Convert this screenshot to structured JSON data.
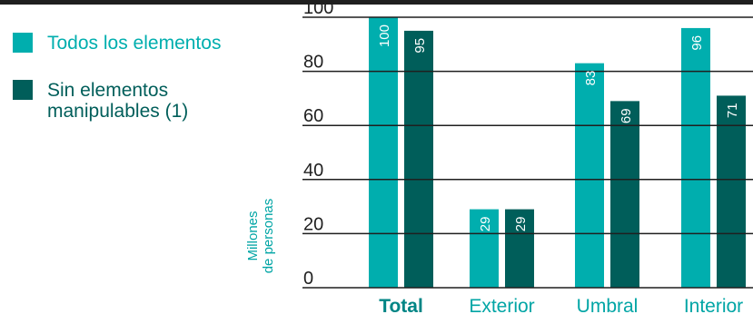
{
  "chart_data": {
    "type": "bar",
    "categories": [
      "Total",
      "Exterior",
      "Umbral",
      "Interior"
    ],
    "series": [
      {
        "name": "Todos los elementos",
        "values": [
          100,
          29,
          83,
          96
        ],
        "color": "#00aeae"
      },
      {
        "name": "Sin elementos\nmanipulables (1)",
        "values": [
          95,
          29,
          69,
          71
        ],
        "color": "#005e5a"
      }
    ],
    "ylabel": "Millones\nde personas",
    "ylim": [
      0,
      100
    ],
    "yticks": [
      "0",
      "20",
      "40",
      "60",
      "80",
      "100"
    ],
    "ytick_values": [
      0,
      20,
      40,
      60,
      80,
      100
    ],
    "grid": true,
    "legend": "top-left",
    "highlight_category": "Total",
    "category_color": "#00a5a5",
    "highlight_color": "#008585",
    "label_color": "#ffffff",
    "grid_color": "#1f1f1f",
    "ylabel_color": "#00a5a5"
  }
}
